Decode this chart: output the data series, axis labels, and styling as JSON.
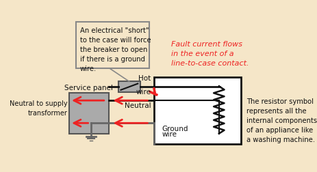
{
  "background_color": "#F5E6C8",
  "callout_text": "An electrical \"short\"\nto the case will force\nthe breaker to open\nif there is a ground\nwire.",
  "fault_text": "Fault current flows\nin the event of a\nline-to-case contact.",
  "resistor_text": "The resistor symbol\nrepresents all the\ninternal components\nof an appliance like\na washing machine.",
  "label_hot": "Hot\nwire",
  "label_neutral": "Neutral",
  "label_ground": "Ground\nwire",
  "label_service": "Service panel",
  "label_neutral_supply": "Neutral to supply\ntransformer",
  "box_bg": "#FFFFFF",
  "gray_color": "#AAAAAA",
  "dark_gray": "#555555",
  "wire_gray": "#666666",
  "red_color": "#EE2222",
  "black": "#111111",
  "callout_bg": "#F5E6C8",
  "callout_border": "#888888"
}
